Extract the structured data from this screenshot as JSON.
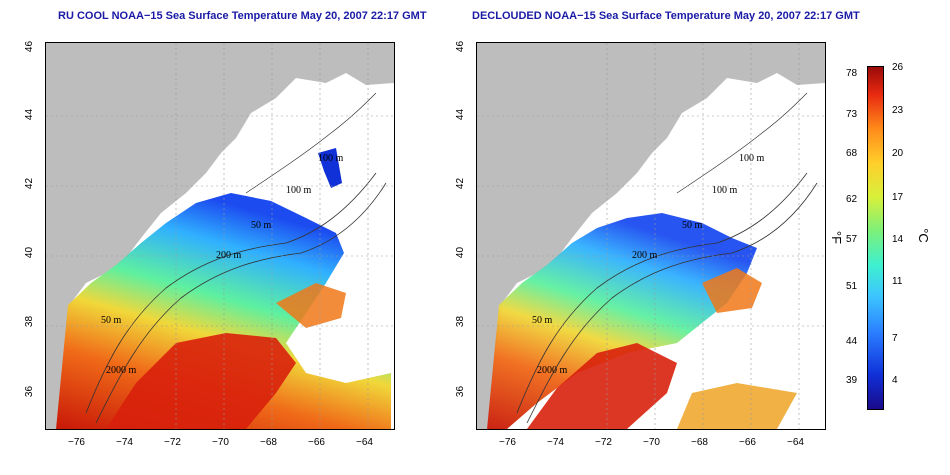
{
  "titles": {
    "left": "RU COOL NOAA−15 Sea Surface Temperature May 20, 2007 22:17 GMT",
    "right": "DECLOUDED NOAA−15 Sea Surface Temperature May 20, 2007 22:17 GMT"
  },
  "axes": {
    "x_ticks": [
      "−76",
      "−74",
      "−72",
      "−70",
      "−68",
      "−66",
      "−64"
    ],
    "y_ticks": [
      "36",
      "38",
      "40",
      "42",
      "44",
      "46"
    ]
  },
  "contours": {
    "left": [
      "100 m",
      "100 m",
      "50 m",
      "200 m",
      "50 m",
      "2000 m"
    ],
    "right": [
      "100 m",
      "100 m",
      "50 m",
      "200 m",
      "50 m",
      "2000 m"
    ]
  },
  "colorbar": {
    "fahrenheit_ticks": [
      "78",
      "73",
      "68",
      "62",
      "57",
      "51",
      "44",
      "39"
    ],
    "celsius_ticks": [
      "26",
      "23",
      "20",
      "17",
      "14",
      "11",
      "7",
      "4"
    ],
    "f_unit": "°F",
    "c_unit": "°C"
  },
  "colors": {
    "title": "#1a1aa6",
    "land": "#bdbdbd",
    "cold": "#1030d8",
    "warm": "#d8200c"
  }
}
